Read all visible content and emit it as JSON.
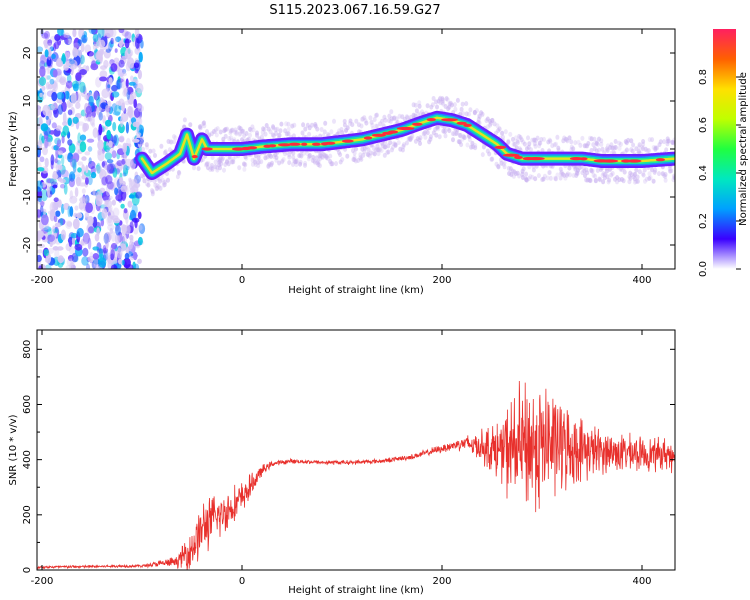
{
  "title": "S115.2023.067.16.59.G27",
  "colors": {
    "snr_line": "#e8302c",
    "colormap": [
      "#ffffff",
      "#3a00ff",
      "#00a0ff",
      "#00e8c0",
      "#20ff40",
      "#c0ff00",
      "#ffe000",
      "#ff6000",
      "#ff2060"
    ]
  },
  "chart_data": [
    {
      "type": "heatmap",
      "title": "",
      "xlabel": "Height of straight line (km)",
      "ylabel": "Frequency (Hz)",
      "xlim": [
        -205,
        433
      ],
      "ylim": [
        -25,
        25
      ],
      "x_ticks": [
        -200,
        0,
        200,
        400
      ],
      "y_ticks": [
        -20,
        -10,
        0,
        10,
        20
      ],
      "colorbar": {
        "label": "Normalized spectral amplitude",
        "range": [
          0,
          1
        ],
        "ticks": [
          0.0,
          0.2,
          0.4,
          0.6,
          0.8
        ]
      },
      "ridge": {
        "x": [
          -100,
          -90,
          -75,
          -62,
          -55,
          -48,
          -40,
          -35,
          -25,
          -10,
          0,
          20,
          50,
          80,
          100,
          120,
          140,
          160,
          180,
          195,
          210,
          225,
          240,
          255,
          265,
          280,
          300,
          320,
          340,
          360,
          380,
          400,
          433
        ],
        "y": [
          -2,
          -5,
          -3,
          -1,
          3,
          -2,
          2,
          0,
          0,
          0,
          0,
          0.5,
          1,
          1,
          1.5,
          2,
          3,
          4,
          5.5,
          6.5,
          6,
          5,
          3,
          1,
          -1,
          -2,
          -2,
          -2,
          -2,
          -2.5,
          -2.5,
          -2.5,
          -2
        ]
      },
      "noise_region_x": [
        -205,
        -100
      ]
    },
    {
      "type": "line",
      "title": "",
      "xlabel": "Height of straight line (km)",
      "ylabel": "SNR (10 * v/v)",
      "xlim": [
        -205,
        433
      ],
      "ylim": [
        0,
        870
      ],
      "x_ticks": [
        -200,
        0,
        200,
        400
      ],
      "y_ticks": [
        0,
        200,
        400,
        600,
        800
      ],
      "envelope": {
        "x": [
          -205,
          -100,
          -65,
          -50,
          -40,
          -30,
          -20,
          -10,
          0,
          10,
          20,
          30,
          50,
          80,
          110,
          140,
          170,
          200,
          220,
          240,
          260,
          270,
          290,
          310,
          330,
          360,
          400,
          433
        ],
        "mean": [
          10,
          15,
          30,
          80,
          150,
          180,
          200,
          230,
          260,
          310,
          360,
          385,
          395,
          390,
          390,
          395,
          410,
          440,
          460,
          450,
          430,
          440,
          450,
          460,
          440,
          430,
          420,
          420
        ],
        "spread": [
          5,
          5,
          20,
          80,
          100,
          90,
          80,
          70,
          60,
          40,
          20,
          10,
          8,
          8,
          8,
          8,
          10,
          15,
          25,
          60,
          120,
          200,
          250,
          200,
          130,
          80,
          60,
          60
        ]
      }
    }
  ]
}
